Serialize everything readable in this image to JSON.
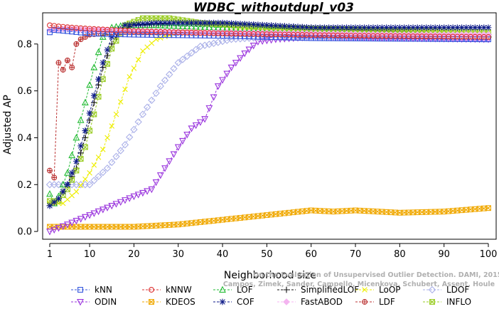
{
  "chart_data": {
    "type": "line",
    "title": "WDBC_withoutdupl_v03",
    "xlabel": "Neighborhood size",
    "ylabel": "Adjusted AP",
    "xlim": [
      1,
      100
    ],
    "ylim": [
      -0.03,
      0.93
    ],
    "xticks": [
      1,
      10,
      20,
      30,
      40,
      50,
      60,
      70,
      80,
      90,
      100
    ],
    "yticks": [
      0.0,
      0.2,
      0.4,
      0.6,
      0.8
    ],
    "ytick_labels": [
      "0.0",
      "0.2",
      "0.4",
      "0.6",
      "0.8"
    ],
    "grid": false,
    "legend_position": "bottom",
    "credit": [
      "Campos, Zimek, Sander, Campello, Micenkova, Schubert, Assent, Houle",
      "On the Evaluation of Unsupervised Outlier Detection. DAMI, 2015."
    ],
    "series": [
      {
        "name": "kNN",
        "color": "#3355dd",
        "marker": "square",
        "keypoints": [
          [
            1,
            0.85
          ],
          [
            2,
            0.86
          ],
          [
            5,
            0.855
          ],
          [
            10,
            0.845
          ],
          [
            20,
            0.84
          ],
          [
            40,
            0.835
          ],
          [
            60,
            0.825
          ],
          [
            100,
            0.82
          ]
        ]
      },
      {
        "name": "kNNW",
        "color": "#dd3333",
        "marker": "circle",
        "keypoints": [
          [
            1,
            0.88
          ],
          [
            3,
            0.875
          ],
          [
            6,
            0.87
          ],
          [
            10,
            0.865
          ],
          [
            20,
            0.855
          ],
          [
            40,
            0.845
          ],
          [
            70,
            0.835
          ],
          [
            100,
            0.83
          ]
        ]
      },
      {
        "name": "LOF",
        "color": "#22bb33",
        "marker": "triangle-up",
        "keypoints": [
          [
            1,
            0.16
          ],
          [
            2,
            0.12
          ],
          [
            3,
            0.15
          ],
          [
            5,
            0.25
          ],
          [
            7,
            0.4
          ],
          [
            9,
            0.55
          ],
          [
            11,
            0.7
          ],
          [
            13,
            0.83
          ],
          [
            15,
            0.87
          ],
          [
            18,
            0.88
          ],
          [
            25,
            0.88
          ],
          [
            40,
            0.87
          ],
          [
            60,
            0.86
          ],
          [
            100,
            0.84
          ]
        ]
      },
      {
        "name": "SimplifiedLOF",
        "color": "#111111",
        "marker": "plus",
        "keypoints": [
          [
            1,
            0.11
          ],
          [
            3,
            0.14
          ],
          [
            5,
            0.2
          ],
          [
            7,
            0.27
          ],
          [
            9,
            0.4
          ],
          [
            11,
            0.55
          ],
          [
            13,
            0.7
          ],
          [
            15,
            0.8
          ],
          [
            17,
            0.86
          ],
          [
            20,
            0.88
          ],
          [
            30,
            0.89
          ],
          [
            50,
            0.88
          ],
          [
            70,
            0.86
          ],
          [
            100,
            0.84
          ]
        ]
      },
      {
        "name": "LoOP",
        "color": "#eeee00",
        "marker": "x",
        "keypoints": [
          [
            1,
            0.12
          ],
          [
            4,
            0.12
          ],
          [
            7,
            0.17
          ],
          [
            10,
            0.25
          ],
          [
            13,
            0.35
          ],
          [
            16,
            0.5
          ],
          [
            19,
            0.66
          ],
          [
            22,
            0.77
          ],
          [
            25,
            0.82
          ],
          [
            30,
            0.85
          ],
          [
            50,
            0.86
          ],
          [
            100,
            0.85
          ]
        ]
      },
      {
        "name": "LDOF",
        "color": "#aab0e8",
        "marker": "diamond",
        "keypoints": [
          [
            6,
            0.2
          ],
          [
            10,
            0.2
          ],
          [
            14,
            0.27
          ],
          [
            18,
            0.37
          ],
          [
            22,
            0.5
          ],
          [
            26,
            0.62
          ],
          [
            30,
            0.72
          ],
          [
            35,
            0.79
          ],
          [
            42,
            0.82
          ],
          [
            50,
            0.83
          ],
          [
            100,
            0.84
          ]
        ]
      },
      {
        "name": "ODIN",
        "color": "#9933dd",
        "marker": "triangle-down",
        "keypoints": [
          [
            1,
            0.0
          ],
          [
            5,
            0.03
          ],
          [
            10,
            0.07
          ],
          [
            15,
            0.11
          ],
          [
            20,
            0.15
          ],
          [
            24,
            0.18
          ],
          [
            27,
            0.27
          ],
          [
            30,
            0.36
          ],
          [
            33,
            0.44
          ],
          [
            36,
            0.48
          ],
          [
            39,
            0.62
          ],
          [
            42,
            0.7
          ],
          [
            45,
            0.76
          ],
          [
            48,
            0.81
          ],
          [
            52,
            0.82
          ],
          [
            60,
            0.83
          ],
          [
            100,
            0.82
          ]
        ]
      },
      {
        "name": "KDEOS",
        "color": "#f0a800",
        "marker": "square-x",
        "keypoints": [
          [
            1,
            0.02
          ],
          [
            10,
            0.02
          ],
          [
            20,
            0.02
          ],
          [
            30,
            0.03
          ],
          [
            40,
            0.05
          ],
          [
            50,
            0.07
          ],
          [
            55,
            0.08
          ],
          [
            60,
            0.09
          ],
          [
            65,
            0.085
          ],
          [
            70,
            0.09
          ],
          [
            80,
            0.08
          ],
          [
            90,
            0.085
          ],
          [
            100,
            0.1
          ]
        ]
      },
      {
        "name": "COF",
        "color": "#0d1a88",
        "marker": "star",
        "keypoints": [
          [
            1,
            0.11
          ],
          [
            3,
            0.14
          ],
          [
            5,
            0.2
          ],
          [
            7,
            0.3
          ],
          [
            9,
            0.43
          ],
          [
            11,
            0.58
          ],
          [
            13,
            0.72
          ],
          [
            15,
            0.83
          ],
          [
            18,
            0.88
          ],
          [
            25,
            0.89
          ],
          [
            40,
            0.89
          ],
          [
            50,
            0.88
          ],
          [
            60,
            0.87
          ],
          [
            80,
            0.87
          ],
          [
            100,
            0.87
          ]
        ]
      },
      {
        "name": "FastABOD",
        "color": "#f4b4f0",
        "marker": "diamond-filled",
        "keypoints": [
          [
            1,
            0.86
          ],
          [
            5,
            0.865
          ],
          [
            10,
            0.86
          ],
          [
            20,
            0.855
          ],
          [
            40,
            0.85
          ],
          [
            60,
            0.845
          ],
          [
            80,
            0.84
          ],
          [
            100,
            0.84
          ]
        ]
      },
      {
        "name": "LDF",
        "color": "#bb3333",
        "marker": "circle-plus",
        "keypoints": [
          [
            1,
            0.26
          ],
          [
            2,
            0.23
          ],
          [
            3,
            0.72
          ],
          [
            4,
            0.69
          ],
          [
            5,
            0.73
          ],
          [
            6,
            0.7
          ],
          [
            7,
            0.8
          ],
          [
            8,
            0.82
          ],
          [
            10,
            0.84
          ],
          [
            15,
            0.85
          ],
          [
            30,
            0.85
          ],
          [
            60,
            0.84
          ],
          [
            100,
            0.83
          ]
        ]
      },
      {
        "name": "INFLO",
        "color": "#99cc22",
        "marker": "square-x",
        "keypoints": [
          [
            1,
            0.13
          ],
          [
            3,
            0.13
          ],
          [
            5,
            0.18
          ],
          [
            7,
            0.26
          ],
          [
            9,
            0.36
          ],
          [
            11,
            0.5
          ],
          [
            13,
            0.65
          ],
          [
            15,
            0.78
          ],
          [
            18,
            0.88
          ],
          [
            22,
            0.91
          ],
          [
            28,
            0.91
          ],
          [
            35,
            0.89
          ],
          [
            50,
            0.87
          ],
          [
            100,
            0.85
          ]
        ]
      }
    ]
  }
}
